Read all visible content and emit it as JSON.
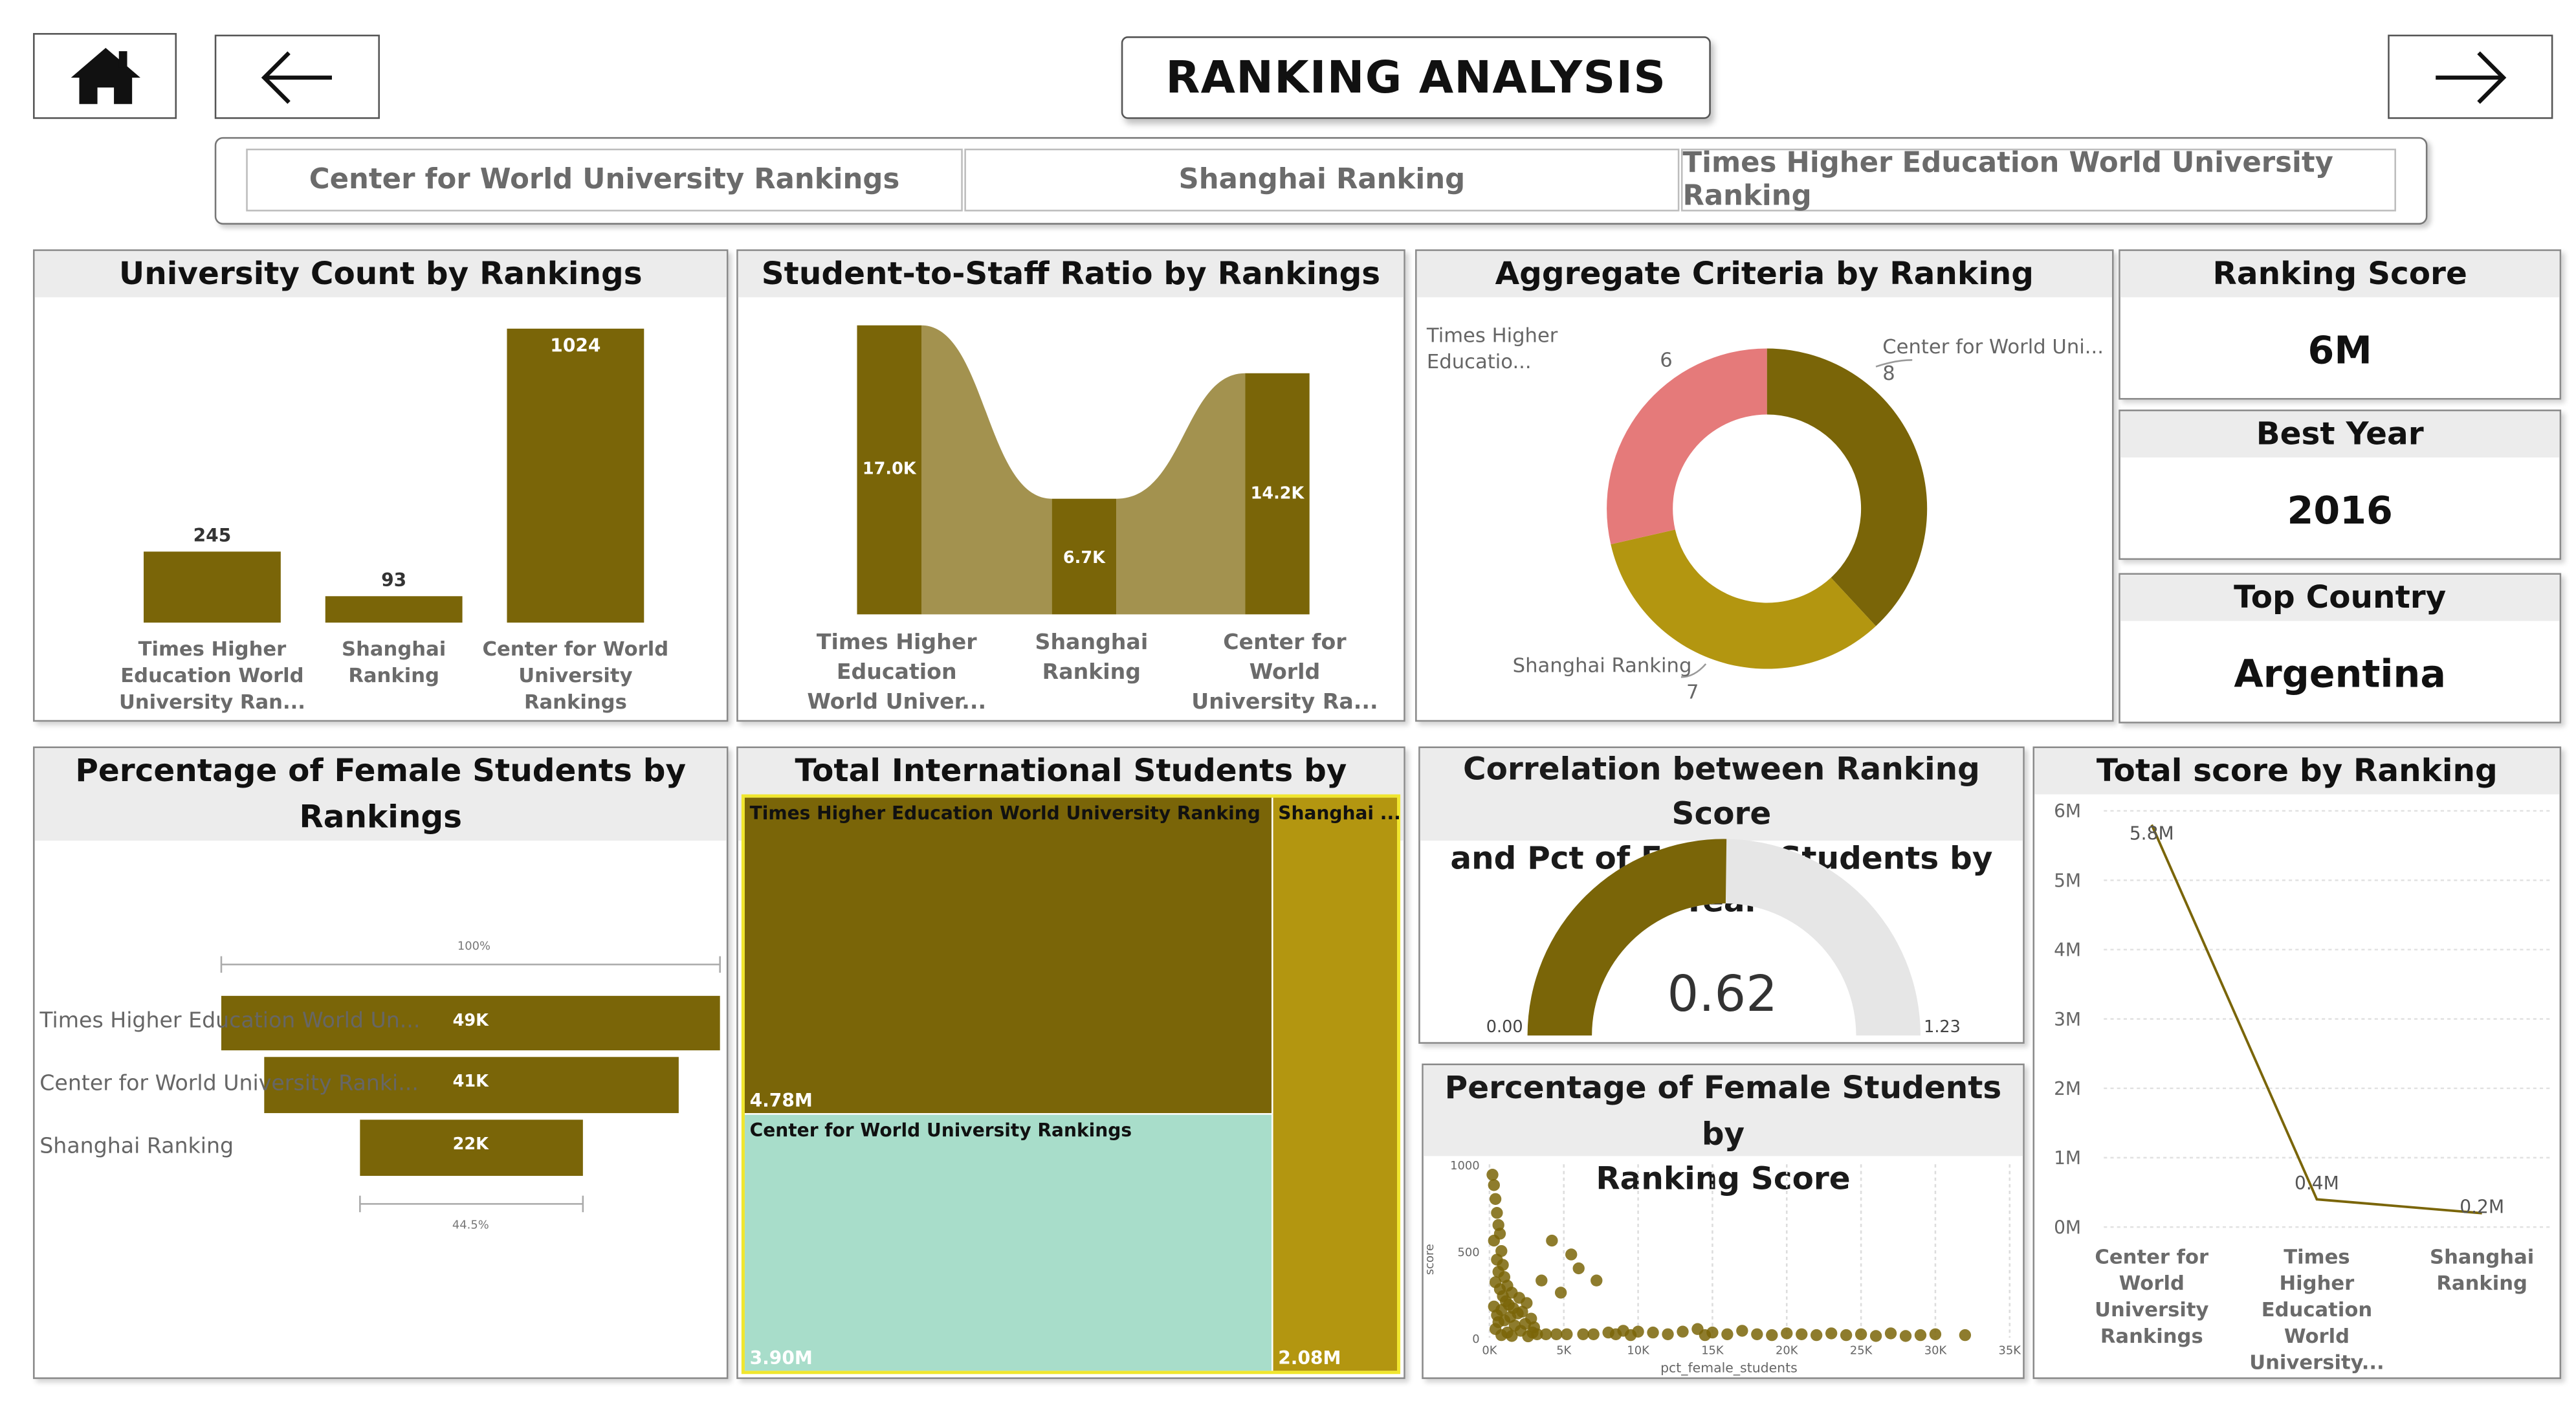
{
  "title": "RANKING ANALYSIS",
  "icons": {
    "home": "home-icon",
    "back": "arrow-left-icon",
    "forward": "arrow-right-icon"
  },
  "colors": {
    "accent": "#7a6508",
    "accent_light": "#a3924f",
    "gold": "#b39610",
    "pink": "#e57a7a",
    "teal": "#a8ddca"
  },
  "tabs": [
    "Center for World University Rankings",
    "Shanghai Ranking",
    "Times Higher Education World University Ranking"
  ],
  "kpis": {
    "ranking_score": {
      "title": "Ranking Score",
      "value": "6M"
    },
    "best_year": {
      "title": "Best Year",
      "value": "2016"
    },
    "top_country": {
      "title": "Top Country",
      "value": "Argentina"
    }
  },
  "university_count": {
    "title": "University Count by Rankings",
    "chart_data": {
      "type": "bar",
      "categories": [
        "Times Higher Education World University Ran...",
        "Shanghai Ranking",
        "Center for World University Rankings"
      ],
      "labels": [
        [
          "Times Higher",
          "Education World",
          "University Ran..."
        ],
        [
          "Shanghai",
          "Ranking"
        ],
        [
          "Center for World",
          "University",
          "Rankings"
        ]
      ],
      "values": [
        245,
        93,
        1024
      ],
      "value_labels": [
        "245",
        "93",
        "1024"
      ]
    }
  },
  "student_staff": {
    "title": "Student-to-Staff Ratio by Rankings",
    "chart_data": {
      "type": "bar",
      "categories": [
        "Times Higher Education World Univer...",
        "Shanghai Ranking",
        "Center for World University Ra..."
      ],
      "labels": [
        [
          "Times Higher",
          "Education",
          "World Univer..."
        ],
        [
          "Shanghai",
          "Ranking"
        ],
        [
          "Center for",
          "World",
          "University Ra..."
        ]
      ],
      "values": [
        17000,
        6700,
        14200
      ],
      "value_labels": [
        "17.0K",
        "6.7K",
        "14.2K"
      ]
    }
  },
  "aggregate": {
    "title": "Aggregate Criteria by Ranking",
    "chart_data": {
      "type": "pie",
      "slices": [
        {
          "name": "Center for World Uni...",
          "value": 8,
          "label": "8"
        },
        {
          "name": "Shanghai Ranking",
          "value": 7,
          "label": "7"
        },
        {
          "name": "Times Higher Educatio...",
          "value": 6,
          "label": "6"
        }
      ]
    }
  },
  "female_pct": {
    "title": "Percentage of Female Students by Rankings",
    "chart_data": {
      "type": "bar",
      "categories": [
        "Times Higher Education World Un...",
        "Center for World University Ranki...",
        "Shanghai Ranking"
      ],
      "values": [
        49000,
        41000,
        22000
      ],
      "value_labels": [
        "49K",
        "41K",
        "22K"
      ],
      "top_pct": "100%",
      "bottom_pct": "44.5%"
    }
  },
  "intl_students": {
    "title": "Total International Students by Rankings",
    "chart_data": {
      "type": "heatmap",
      "items": [
        {
          "name": "Times Higher Education World University Ranking",
          "value": 4780000,
          "label": "4.78M"
        },
        {
          "name": "Center for World University Rankings",
          "value": 3900000,
          "label": "3.90M"
        },
        {
          "name": "Shanghai ...",
          "value": 2080000,
          "label": "2.08M"
        }
      ]
    }
  },
  "correlation": {
    "title_line1": "Correlation between Ranking Score",
    "title_line2": "and Pct of Female Students by Year",
    "chart_data": {
      "type": "area",
      "value": 0.62,
      "value_label": "0.62",
      "min": 0.0,
      "max": 1.23,
      "min_label": "0.00",
      "max_label": "1.23"
    }
  },
  "scatter": {
    "title_line1": "Percentage of Female Students by",
    "title_line2": "Ranking Score",
    "chart_data": {
      "type": "scatter",
      "xlabel": "pct_female_students",
      "ylabel": "score",
      "x_ticks": [
        "0K",
        "5K",
        "10K",
        "15K",
        "20K",
        "25K",
        "30K",
        "35K"
      ],
      "y_ticks": [
        "0",
        "500",
        "1000"
      ],
      "xlim": [
        0,
        35000
      ],
      "ylim": [
        0,
        1000
      ],
      "points": [
        [
          200,
          940
        ],
        [
          300,
          880
        ],
        [
          400,
          800
        ],
        [
          500,
          720
        ],
        [
          600,
          650
        ],
        [
          700,
          600
        ],
        [
          300,
          560
        ],
        [
          800,
          500
        ],
        [
          500,
          450
        ],
        [
          900,
          420
        ],
        [
          600,
          380
        ],
        [
          1000,
          350
        ],
        [
          400,
          320
        ],
        [
          1200,
          300
        ],
        [
          700,
          280
        ],
        [
          1500,
          260
        ],
        [
          900,
          240
        ],
        [
          2000,
          230
        ],
        [
          1100,
          210
        ],
        [
          2500,
          200
        ],
        [
          1300,
          190
        ],
        [
          300,
          180
        ],
        [
          1600,
          170
        ],
        [
          800,
          160
        ],
        [
          2200,
          150
        ],
        [
          1900,
          140
        ],
        [
          500,
          130
        ],
        [
          1400,
          120
        ],
        [
          2800,
          110
        ],
        [
          1000,
          100
        ],
        [
          600,
          90
        ],
        [
          2400,
          80
        ],
        [
          1700,
          70
        ],
        [
          3000,
          60
        ],
        [
          400,
          50
        ],
        [
          2100,
          40
        ],
        [
          1200,
          30
        ],
        [
          3200,
          20
        ],
        [
          800,
          15
        ],
        [
          1500,
          10
        ],
        [
          2600,
          8
        ],
        [
          4200,
          560
        ],
        [
          5500,
          480
        ],
        [
          6000,
          400
        ],
        [
          3500,
          330
        ],
        [
          4800,
          260
        ],
        [
          7200,
          330
        ],
        [
          8000,
          30
        ],
        [
          9000,
          40
        ],
        [
          10000,
          35
        ],
        [
          11000,
          30
        ],
        [
          8500,
          20
        ],
        [
          9500,
          15
        ],
        [
          12000,
          20
        ],
        [
          13000,
          35
        ],
        [
          14000,
          50
        ],
        [
          15000,
          30
        ],
        [
          16000,
          20
        ],
        [
          17000,
          40
        ],
        [
          14500,
          15
        ],
        [
          18000,
          20
        ],
        [
          19000,
          15
        ],
        [
          20000,
          25
        ],
        [
          21000,
          20
        ],
        [
          22000,
          15
        ],
        [
          23000,
          25
        ],
        [
          24000,
          15
        ],
        [
          25000,
          20
        ],
        [
          26000,
          10
        ],
        [
          27000,
          25
        ],
        [
          28000,
          10
        ],
        [
          29000,
          15
        ],
        [
          30000,
          20
        ],
        [
          32000,
          15
        ],
        [
          4500,
          20
        ],
        [
          5200,
          20
        ],
        [
          6300,
          20
        ],
        [
          7000,
          20
        ],
        [
          3800,
          20
        ],
        [
          2900,
          30
        ]
      ]
    }
  },
  "total_score": {
    "title": "Total score by Ranking",
    "chart_data": {
      "type": "line",
      "categories": [
        "Center for World University Rankings",
        "Times Higher Education World University...",
        "Shanghai Ranking"
      ],
      "labels": [
        [
          "Center for",
          "World",
          "University",
          "Rankings"
        ],
        [
          "Times",
          "Higher",
          "Education",
          "World",
          "University..."
        ],
        [
          "Shanghai",
          "Ranking"
        ]
      ],
      "values": [
        5800000,
        400000,
        200000
      ],
      "value_labels": [
        "5.8M",
        "0.4M",
        "0.2M"
      ],
      "y_ticks": [
        "0M",
        "1M",
        "2M",
        "3M",
        "4M",
        "5M",
        "6M"
      ],
      "ylim": [
        0,
        6000000
      ]
    }
  }
}
